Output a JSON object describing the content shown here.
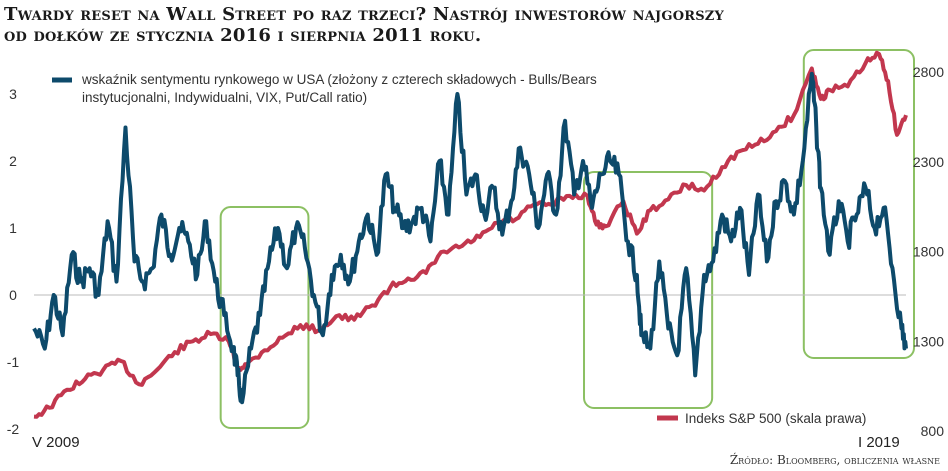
{
  "title_line1": "Twardy reset na Wall Street po raz trzeci? Nastrój inwestorów najgorszy",
  "title_line2": "od dołków ze stycznia 2016 i sierpnia 2011 roku.",
  "source": "Źródło: Bloomberg, obliczenia własne",
  "colors": {
    "sentiment": "#0d4a6b",
    "sp500": "#c2374e",
    "highlight": "#8cc063",
    "zero_line": "#bbbbbb"
  },
  "chart_data": {
    "type": "line",
    "x_start_label": "V 2009",
    "x_end_label": "I 2019",
    "x_range": [
      2009.33,
      2019.05
    ],
    "left_axis": {
      "ticks": [
        3,
        2,
        1,
        0,
        -1,
        -2
      ],
      "ylim": [
        -2,
        3.5
      ]
    },
    "right_axis": {
      "ticks": [
        2800,
        2300,
        1800,
        1300,
        800
      ],
      "ylim": [
        800,
        2900
      ]
    },
    "series": [
      {
        "name": "wskaźnik sentymentu rynkowego w USA (złożony z czterech składowych - Bulls/Bears instytucjonalni, Indywidualni, VIX, Put/Call ratio)",
        "axis": "left",
        "x": [
          2009.33,
          2009.45,
          2009.55,
          2009.65,
          2009.75,
          2009.85,
          2009.95,
          2010.05,
          2010.15,
          2010.25,
          2010.35,
          2010.45,
          2010.55,
          2010.65,
          2010.75,
          2010.85,
          2010.95,
          2011.05,
          2011.15,
          2011.25,
          2011.35,
          2011.45,
          2011.55,
          2011.6,
          2011.65,
          2011.75,
          2011.85,
          2011.95,
          2012.05,
          2012.15,
          2012.25,
          2012.35,
          2012.45,
          2012.55,
          2012.65,
          2012.75,
          2012.85,
          2012.95,
          2013.05,
          2013.15,
          2013.25,
          2013.35,
          2013.45,
          2013.55,
          2013.65,
          2013.75,
          2013.85,
          2013.95,
          2014.05,
          2014.15,
          2014.25,
          2014.35,
          2014.45,
          2014.55,
          2014.65,
          2014.75,
          2014.85,
          2014.95,
          2015.05,
          2015.15,
          2015.25,
          2015.35,
          2015.45,
          2015.55,
          2015.65,
          2015.75,
          2015.85,
          2015.95,
          2016.05,
          2016.1,
          2016.2,
          2016.3,
          2016.4,
          2016.5,
          2016.6,
          2016.7,
          2016.8,
          2016.9,
          2017.0,
          2017.1,
          2017.2,
          2017.3,
          2017.4,
          2017.5,
          2017.6,
          2017.7,
          2017.8,
          2017.9,
          2018.0,
          2018.05,
          2018.1,
          2018.2,
          2018.3,
          2018.4,
          2018.5,
          2018.6,
          2018.7,
          2018.8,
          2018.9,
          2019.0,
          2019.05
        ],
        "values": [
          -0.5,
          -0.8,
          0.0,
          -0.6,
          0.6,
          0.2,
          0.4,
          0.0,
          1.1,
          0.2,
          2.5,
          0.5,
          0.2,
          0.4,
          1.2,
          0.6,
          1.0,
          0.8,
          0.3,
          1.1,
          0.2,
          -0.3,
          -0.8,
          -1.2,
          -1.6,
          -0.8,
          -0.3,
          0.5,
          1.0,
          0.4,
          1.0,
          0.7,
          0.0,
          -0.6,
          0.3,
          0.6,
          0.2,
          0.8,
          1.2,
          0.6,
          1.8,
          1.3,
          1.0,
          1.1,
          1.3,
          0.8,
          2.0,
          1.2,
          3.0,
          1.5,
          1.8,
          1.2,
          1.6,
          0.9,
          1.4,
          2.2,
          1.8,
          1.0,
          1.8,
          1.2,
          2.6,
          1.5,
          2.0,
          1.3,
          1.8,
          2.0,
          1.8,
          0.8,
          0.3,
          -0.6,
          -0.8,
          0.5,
          -0.5,
          -0.9,
          0.4,
          -1.2,
          0.3,
          0.5,
          1.2,
          0.8,
          1.3,
          0.3,
          1.5,
          0.5,
          1.4,
          1.7,
          1.2,
          2.0,
          3.3,
          2.5,
          1.6,
          0.6,
          1.4,
          0.8,
          1.2,
          1.6,
          1.0,
          1.3,
          0.4,
          -0.5,
          -0.8
        ]
      },
      {
        "name": "Indeks S&P 500 (skala prawa)",
        "axis": "right",
        "x": [
          2009.33,
          2009.5,
          2009.7,
          2009.9,
          2010.1,
          2010.3,
          2010.5,
          2010.7,
          2010.9,
          2011.1,
          2011.3,
          2011.5,
          2011.6,
          2011.7,
          2011.9,
          2012.1,
          2012.3,
          2012.5,
          2012.7,
          2012.9,
          2013.1,
          2013.3,
          2013.5,
          2013.7,
          2013.9,
          2014.1,
          2014.3,
          2014.5,
          2014.7,
          2014.9,
          2015.1,
          2015.3,
          2015.5,
          2015.6,
          2015.7,
          2015.9,
          2016.05,
          2016.2,
          2016.4,
          2016.6,
          2016.8,
          2017.0,
          2017.2,
          2017.4,
          2017.6,
          2017.8,
          2018.0,
          2018.1,
          2018.2,
          2018.4,
          2018.6,
          2018.75,
          2018.85,
          2018.95,
          2019.05
        ],
        "values": [
          880,
          930,
          1030,
          1090,
          1140,
          1190,
          1060,
          1140,
          1240,
          1300,
          1340,
          1300,
          1150,
          1170,
          1250,
          1320,
          1390,
          1360,
          1440,
          1420,
          1500,
          1600,
          1650,
          1680,
          1800,
          1830,
          1880,
          1960,
          1980,
          2060,
          2060,
          2110,
          2110,
          1950,
          1940,
          2080,
          1900,
          2030,
          2090,
          2170,
          2140,
          2270,
          2360,
          2400,
          2470,
          2560,
          2820,
          2650,
          2700,
          2720,
          2850,
          2900,
          2750,
          2450,
          2560
        ]
      }
    ],
    "highlight_periods": [
      [
        2011.5,
        2012.3
      ],
      [
        2015.55,
        2016.8
      ],
      [
        2018.0,
        2019.05
      ]
    ]
  }
}
